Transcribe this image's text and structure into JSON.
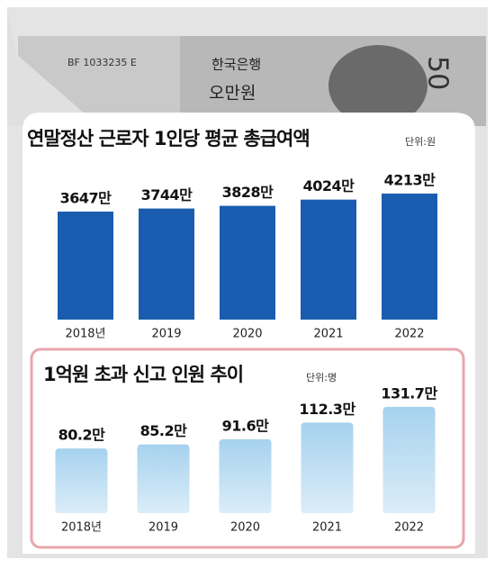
{
  "background": {
    "serial": "BF 1033235 E",
    "bank": "한국은행",
    "denomination": "오만원",
    "amount": "50"
  },
  "chart_data": [
    {
      "type": "bar",
      "title": "연말정산 근로자 1인당 평균 총급여액",
      "unit": "단위:원",
      "categories": [
        "2018년",
        "2019",
        "2020",
        "2021",
        "2022"
      ],
      "values": [
        3647,
        3744,
        3828,
        4024,
        4213
      ],
      "value_labels": [
        "3647만",
        "3744만",
        "3828만",
        "4024만",
        "4213만"
      ],
      "color": "#1a5db0",
      "ylim": [
        250,
        4780
      ]
    },
    {
      "type": "bar",
      "title": "1억원 초과 신고 인원 추이",
      "unit": "단위:명",
      "categories": [
        "2018년",
        "2019",
        "2020",
        "2021",
        "2022"
      ],
      "values": [
        80.2,
        85.2,
        91.6,
        112.3,
        131.7
      ],
      "value_labels": [
        "80.2만",
        "85.2만",
        "91.6만",
        "112.3만",
        "131.7만"
      ],
      "color": "#a6d2ee",
      "ylim": [
        0,
        145
      ]
    }
  ]
}
